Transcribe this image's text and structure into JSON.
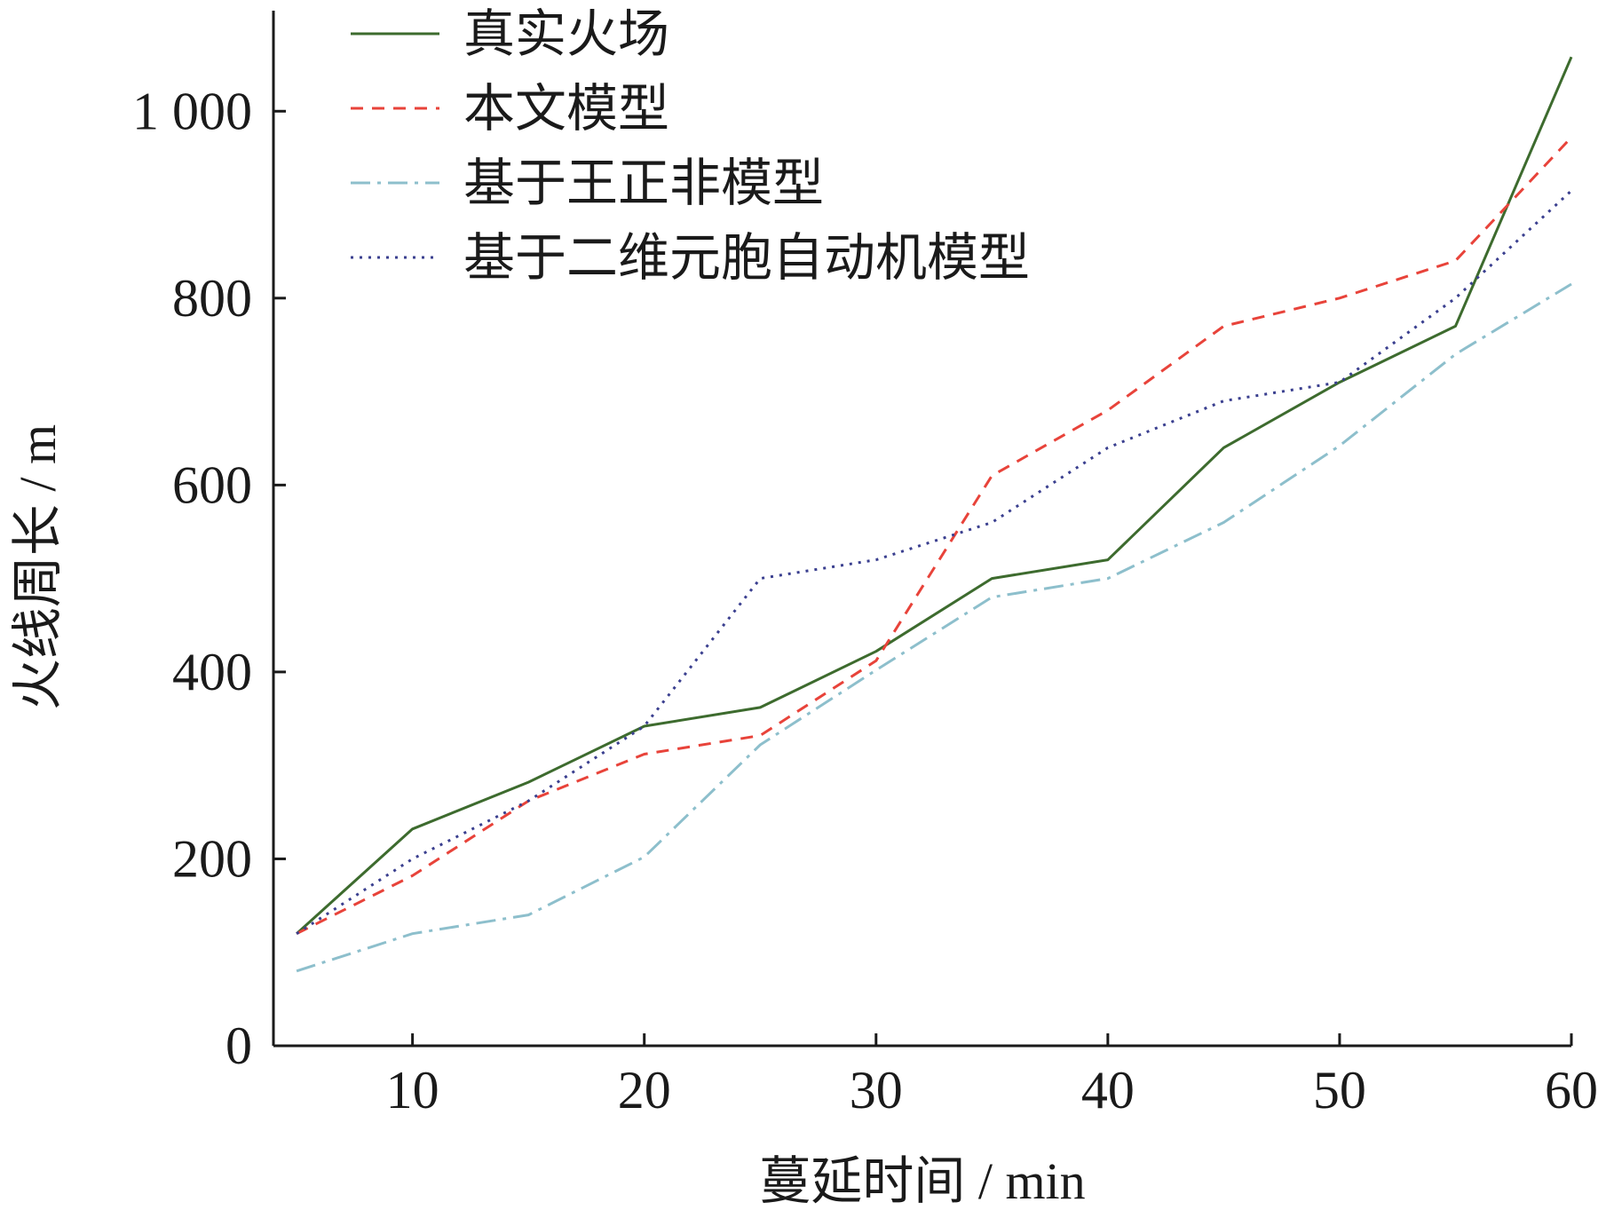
{
  "chart_data": {
    "type": "line",
    "title": "",
    "xlabel": "蔓延时间 / min",
    "ylabel": "火线周长 / m",
    "xlim": [
      4,
      60
    ],
    "ylim": [
      0,
      1100
    ],
    "x": [
      5,
      10,
      15,
      20,
      25,
      30,
      35,
      40,
      45,
      50,
      55,
      60
    ],
    "xticks": [
      10,
      20,
      30,
      40,
      50,
      60
    ],
    "xtick_labels": [
      "10",
      "20",
      "30",
      "40",
      "50",
      "60"
    ],
    "yticks": [
      0,
      200,
      400,
      600,
      800,
      1000
    ],
    "ytick_labels": [
      "0",
      "200",
      "400",
      "600",
      "800",
      "1 000"
    ],
    "grid": false,
    "legend_position": "top-left",
    "series": [
      {
        "name": "真实火场",
        "color": "#3d6b2e",
        "dash": "solid",
        "values": [
          120,
          232,
          282,
          342,
          362,
          422,
          500,
          520,
          640,
          710,
          770,
          1058
        ]
      },
      {
        "name": "本文模型",
        "color": "#e8433a",
        "dash": "dashed",
        "values": [
          120,
          182,
          262,
          312,
          332,
          412,
          610,
          680,
          770,
          800,
          840,
          972
        ]
      },
      {
        "name": "基于王正非模型",
        "color": "#8dbfcc",
        "dash": "dashdot",
        "values": [
          80,
          120,
          140,
          202,
          322,
          402,
          480,
          500,
          560,
          642,
          740,
          815
        ]
      },
      {
        "name": "基于二维元胞自动机模型",
        "color": "#3a3f8f",
        "dash": "dotted",
        "values": [
          120,
          200,
          262,
          342,
          500,
          520,
          560,
          640,
          690,
          710,
          800,
          915
        ]
      }
    ]
  }
}
